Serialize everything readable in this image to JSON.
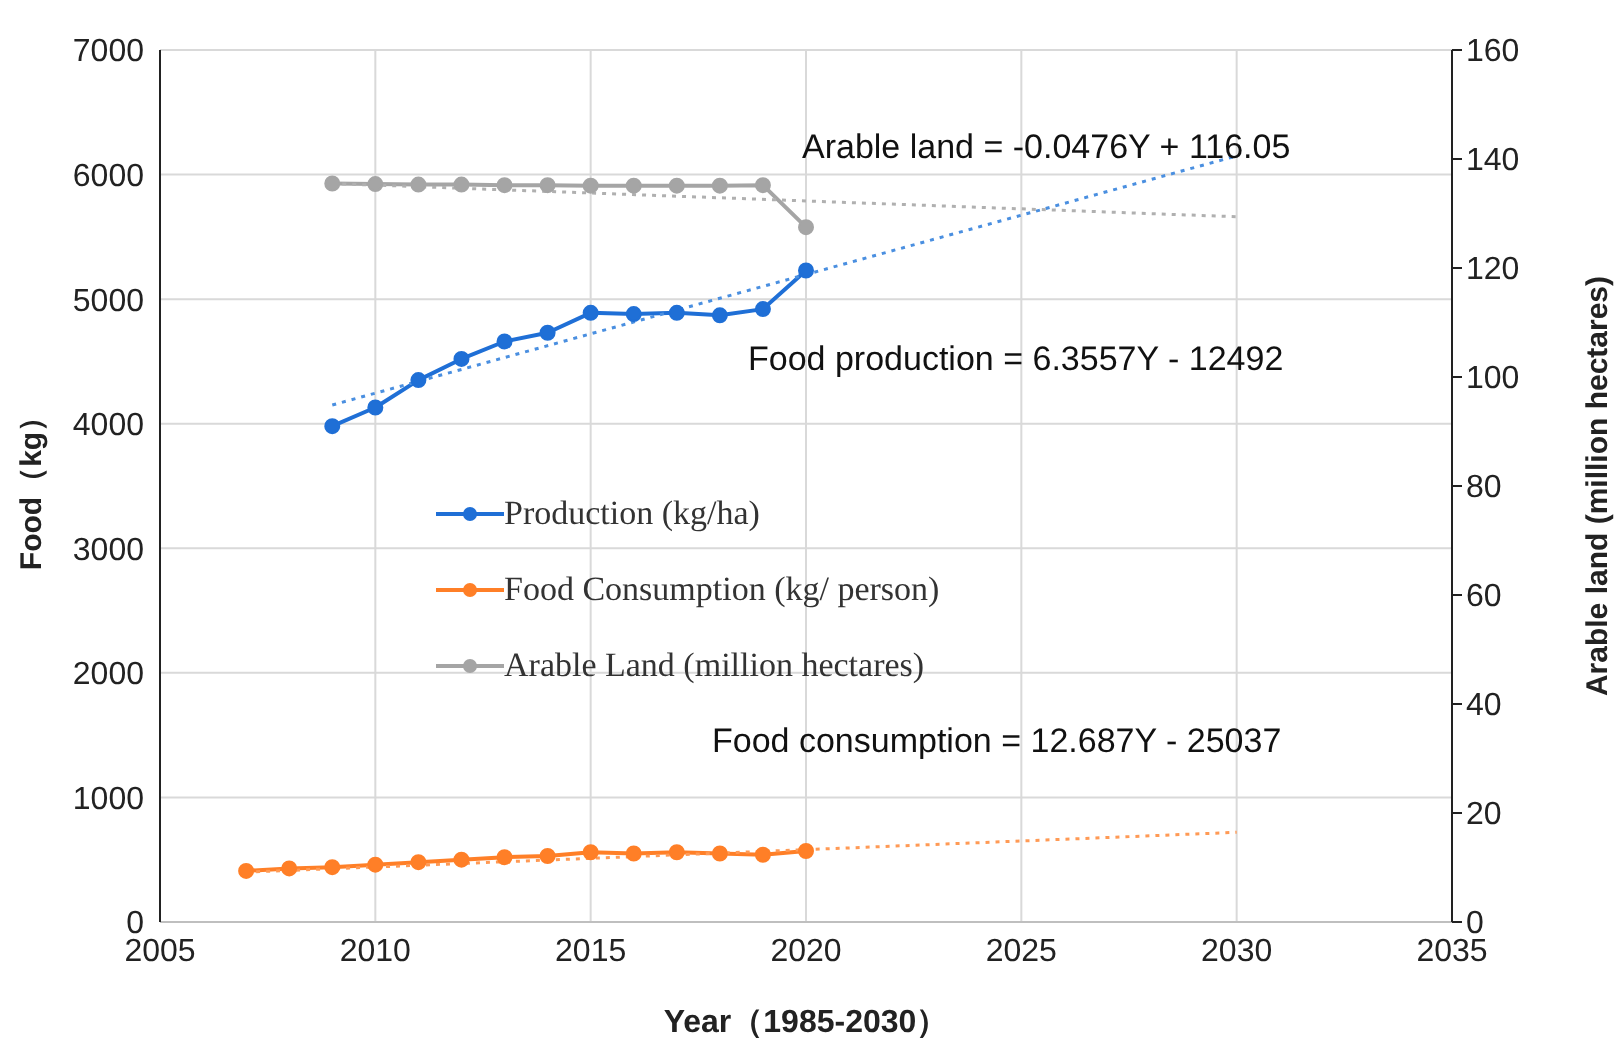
{
  "chart_data": {
    "type": "line",
    "xlabel": "Year（1985-2030）",
    "ylabel": "Food（kg）",
    "y2label": "Arable land (million hectares)",
    "xlim": [
      2005,
      2035
    ],
    "xticks": [
      2005,
      2010,
      2015,
      2020,
      2025,
      2030,
      2035
    ],
    "ylim": [
      0,
      7000
    ],
    "yticks": [
      0,
      1000,
      2000,
      3000,
      4000,
      5000,
      6000,
      7000
    ],
    "y2lim": [
      0,
      160
    ],
    "y2ticks": [
      0,
      20,
      40,
      60,
      80,
      100,
      120,
      140,
      160
    ],
    "grid": true,
    "legend": "left",
    "marker": "circle",
    "line_style": "solid",
    "series": [
      {
        "name": "Production (kg/ha)",
        "color": "#1f6fd6",
        "x": [
          2009,
          2010,
          2011,
          2012,
          2013,
          2014,
          2015,
          2016,
          2017,
          2018,
          2019,
          2020
        ],
        "values": [
          3980,
          4130,
          4350,
          4520,
          4660,
          4730,
          4890,
          4880,
          4890,
          4870,
          4920,
          5230
        ]
      },
      {
        "name": "Food Consumption (kg/ person)",
        "color": "#ff7f27",
        "x": [
          2007,
          2008,
          2009,
          2010,
          2011,
          2012,
          2013,
          2014,
          2015,
          2016,
          2017,
          2018,
          2019,
          2020
        ],
        "values": [
          410,
          430,
          440,
          460,
          480,
          500,
          520,
          530,
          560,
          550,
          560,
          550,
          540,
          570
        ]
      },
      {
        "name": "Arable Land (million hectares)",
        "color": "#a5a5a5",
        "axis": "y2",
        "x": [
          2009,
          2010,
          2011,
          2012,
          2013,
          2014,
          2015,
          2016,
          2017,
          2018,
          2019,
          2020
        ],
        "values": [
          135.5,
          135.4,
          135.3,
          135.3,
          135.2,
          135.2,
          135.1,
          135.1,
          135.1,
          135.1,
          135.2,
          127.5
        ]
      },
      {
        "color": "#4a8fe0",
        "marker": "none",
        "line_style": "dotted",
        "x": [
          2009,
          2030
        ],
        "values": [
          4150,
          6150
        ]
      },
      {
        "color": "#ff9a55",
        "marker": "none",
        "line_style": "dotted",
        "x": [
          2007,
          2030
        ],
        "values": [
          400,
          720
        ]
      },
      {
        "color": "#b0b0b0",
        "marker": "none",
        "line_style": "dotted",
        "axis": "y2",
        "x": [
          2009,
          2030
        ],
        "values": [
          135.5,
          129.4
        ]
      }
    ],
    "annotations": [
      "Arable land = -0.0476Y + 116.05",
      "Food production = 6.3557Y - 12492",
      "Food consumption = 12.687Y - 25037"
    ]
  }
}
